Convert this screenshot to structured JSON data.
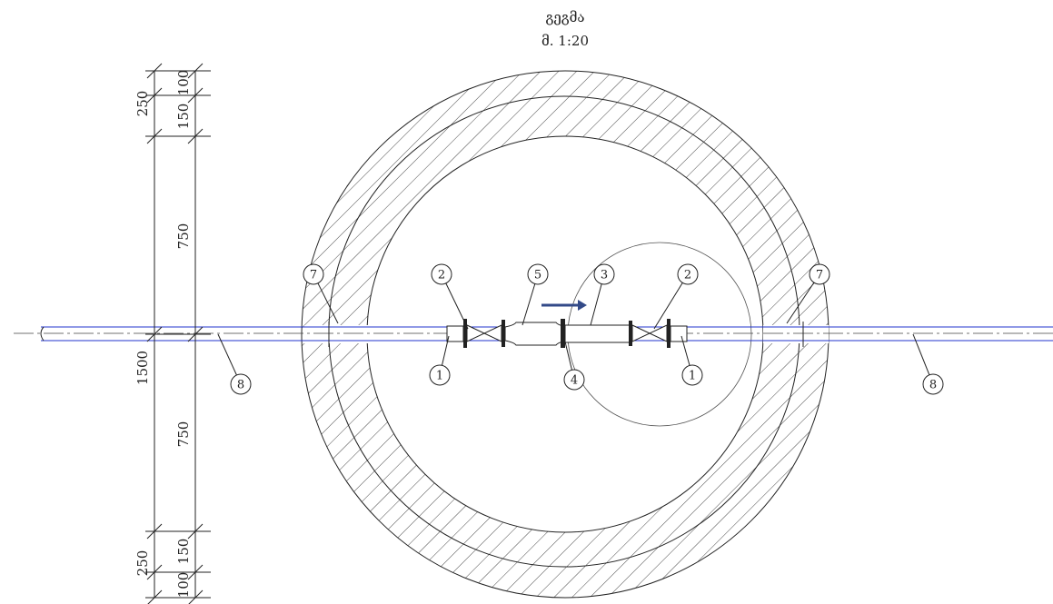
{
  "header": {
    "title": "გეგმა",
    "scale": "მ. 1:20"
  },
  "dimensions": [
    "250",
    "100",
    "150",
    "750",
    "1500",
    "750",
    "250",
    "150",
    "100"
  ],
  "callouts": [
    "7",
    "2",
    "5",
    "3",
    "2",
    "7",
    "1",
    "4",
    "1",
    "8",
    "8"
  ]
}
